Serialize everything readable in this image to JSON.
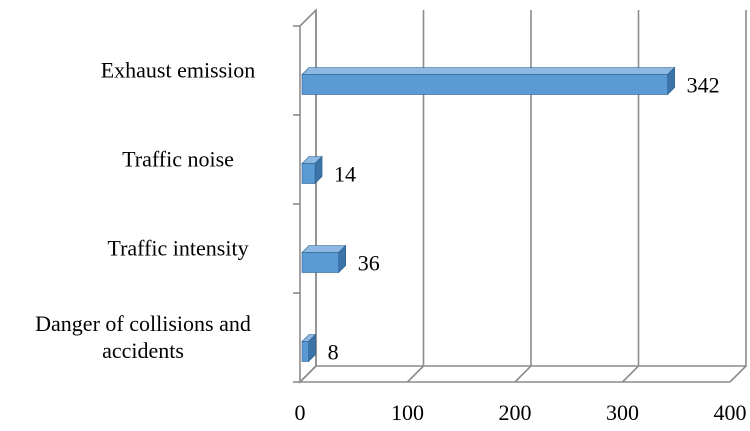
{
  "chart_data": {
    "type": "bar",
    "orientation": "horizontal",
    "style": "3d",
    "categories": [
      "Exhaust emission",
      "Traffic noise",
      "Traffic intensity",
      "Danger of collisions and accidents"
    ],
    "category_lines": [
      [
        "Exhaust emission"
      ],
      [
        "Traffic noise"
      ],
      [
        "Traffic intensity"
      ],
      [
        "Danger of collisions and",
        "accidents"
      ]
    ],
    "values": [
      342,
      14,
      36,
      8
    ],
    "data_labels": [
      "342",
      "14",
      "36",
      "8"
    ],
    "xlim": [
      0,
      400
    ],
    "xticks": [
      "0",
      "100",
      "200",
      "300",
      "400"
    ],
    "title": "",
    "xlabel": "",
    "ylabel": "",
    "grid": "vertical",
    "legend": "none",
    "colors": {
      "bar_front": "#5b9bd5",
      "bar_top": "#8cb8e3",
      "bar_side": "#3a74a8",
      "grid": "#8c8c8c"
    }
  }
}
